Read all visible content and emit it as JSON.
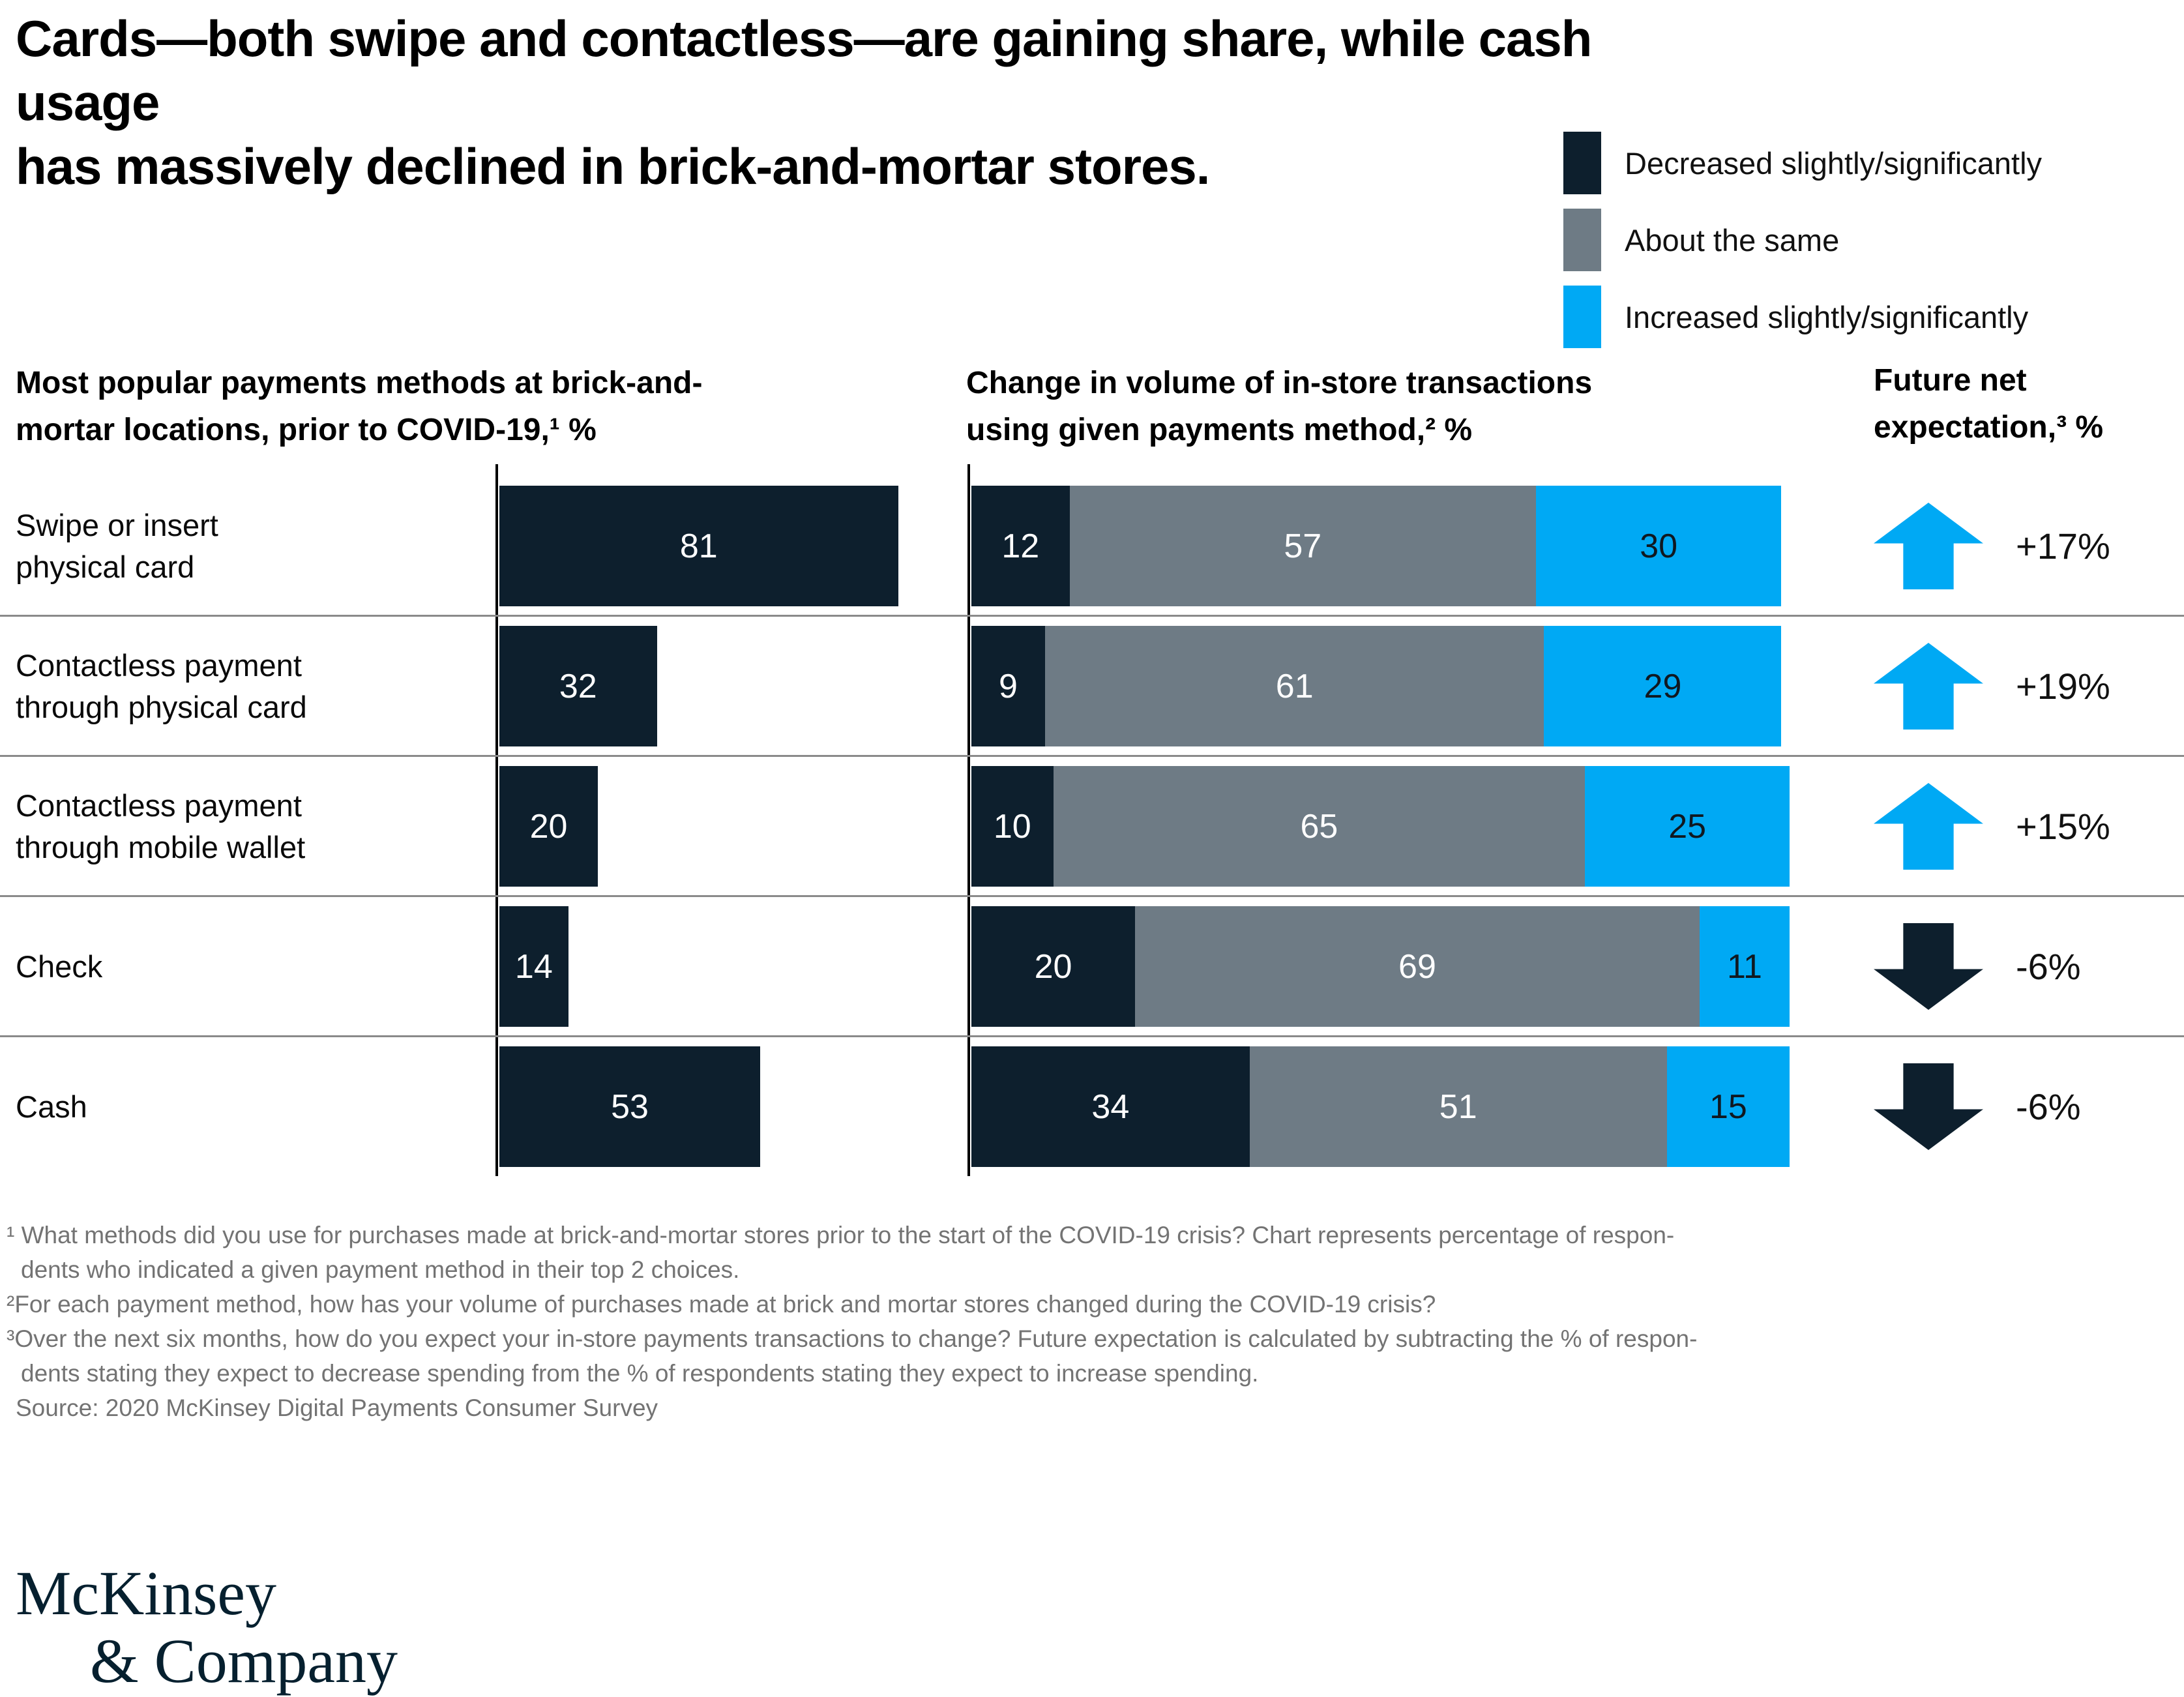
{
  "title": {
    "line1": "Cards—both swipe and contactless—are gaining share, while cash usage",
    "line2": "has massively declined in brick-and-mortar stores."
  },
  "colors": {
    "decreased": "#0d1f2d",
    "same": "#6e7b85",
    "increased": "#00a9f4",
    "separator": "#8a8a8a",
    "logo_navy": "#06202f"
  },
  "legend": {
    "items": [
      {
        "label": "Decreased slightly/significantly"
      },
      {
        "label": "About the same"
      },
      {
        "label": "Increased slightly/significantly"
      }
    ]
  },
  "headers": {
    "popularity": {
      "line1": "Most popular payments methods at brick-and-",
      "line2": "mortar locations, prior to COVID-19,¹ %"
    },
    "change": {
      "line1": "Change in volume of in-store transactions",
      "line2": "using given payments method,² %"
    },
    "future": {
      "line1": "Future net",
      "line2": "expectation,³ %"
    }
  },
  "chart_data": {
    "type": "bar",
    "title": "Cards—both swipe and contactless—are gaining share, while cash usage has massively declined in brick-and-mortar stores.",
    "categories": [
      "Swipe or insert physical card",
      "Contactless payment through physical card",
      "Contactless payment through mobile wallet",
      "Check",
      "Cash"
    ],
    "categories_lines": [
      [
        "Swipe or insert",
        "physical card"
      ],
      [
        "Contactless payment",
        "through physical card"
      ],
      [
        "Contactless payment",
        "through mobile wallet"
      ],
      [
        "Check"
      ],
      [
        "Cash"
      ]
    ],
    "popularity": {
      "label": "Most popular payments methods at brick-and-mortar locations, prior to COVID-19, %",
      "values": [
        81,
        32,
        20,
        14,
        53
      ],
      "unit": "%"
    },
    "change": {
      "label": "Change in volume of in-store transactions using given payments method, %",
      "stacked": true,
      "series": [
        {
          "name": "Decreased slightly/significantly",
          "values": [
            12,
            9,
            10,
            20,
            34
          ]
        },
        {
          "name": "About the same",
          "values": [
            57,
            61,
            65,
            69,
            51
          ]
        },
        {
          "name": "Increased slightly/significantly",
          "values": [
            30,
            29,
            25,
            11,
            15
          ]
        }
      ]
    },
    "future": {
      "label": "Future net expectation, %",
      "values": [
        "+17%",
        "+19%",
        "+15%",
        "-6%",
        "-6%"
      ],
      "directions": [
        "up",
        "up",
        "up",
        "down",
        "down"
      ]
    },
    "legend_position": "top-right",
    "grid": false
  },
  "footnotes": {
    "f1": {
      "line1": "¹ What methods did you use for purchases made at brick-and-mortar stores prior to the start of the COVID-19 crisis? Chart represents percentage of respon-",
      "line2": "dents who indicated a given payment method in their top 2 choices."
    },
    "f2": "²For each payment method, how has your volume of purchases made at brick and mortar stores changed during the COVID-19 crisis?",
    "f3": {
      "line1": "³Over the next six months, how do you expect your in-store payments transactions to change? Future expectation is calculated by subtracting the % of respon-",
      "line2": "dents stating they expect to decrease spending from the % of respondents stating they expect to increase spending."
    },
    "source": "Source: 2020 McKinsey Digital Payments Consumer Survey"
  },
  "logo": {
    "line1": "McKinsey",
    "line2": "& Company"
  }
}
